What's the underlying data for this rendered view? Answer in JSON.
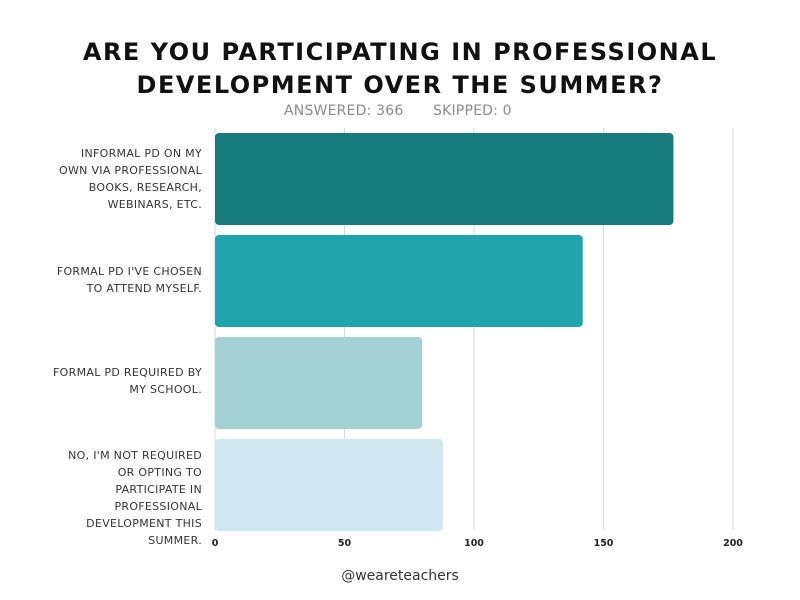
{
  "title": "ARE YOU PARTICIPATING IN PROFESSIONAL DEVELOPMENT OVER THE SUMMER?",
  "stats": {
    "answered": "ANSWERED: 366",
    "skipped": "SKIPPED: 0"
  },
  "footer": "@weareteachers",
  "colors": {
    "bar1": "#187c7e",
    "bar2": "#21a4ab",
    "bar3": "#a3d1d4",
    "bar4": "#cfe8ef",
    "grid": "#d8d8d8"
  },
  "chart_data": {
    "type": "bar",
    "orientation": "horizontal",
    "title": "ARE YOU PARTICIPATING IN PROFESSIONAL DEVELOPMENT OVER THE SUMMER?",
    "categories": [
      "INFORMAL PD ON MY OWN VIA PROFESSIONAL BOOKS, RESEARCH, WEBINARS, ETC.",
      "FORMAL PD I'VE CHOSEN TO ATTEND MYSELF.",
      "FORMAL PD REQUIRED BY MY SCHOOL.",
      "NO, I'M NOT REQUIRED OR OPTING TO PARTICIPATE IN PROFESSIONAL DEVELOPMENT THIS SUMMER."
    ],
    "values": [
      177,
      142,
      80,
      88
    ],
    "xlim": [
      0,
      200
    ],
    "xticks": [
      0,
      50,
      100,
      150,
      200
    ],
    "xlabel": "",
    "ylabel": "",
    "grid": true
  }
}
